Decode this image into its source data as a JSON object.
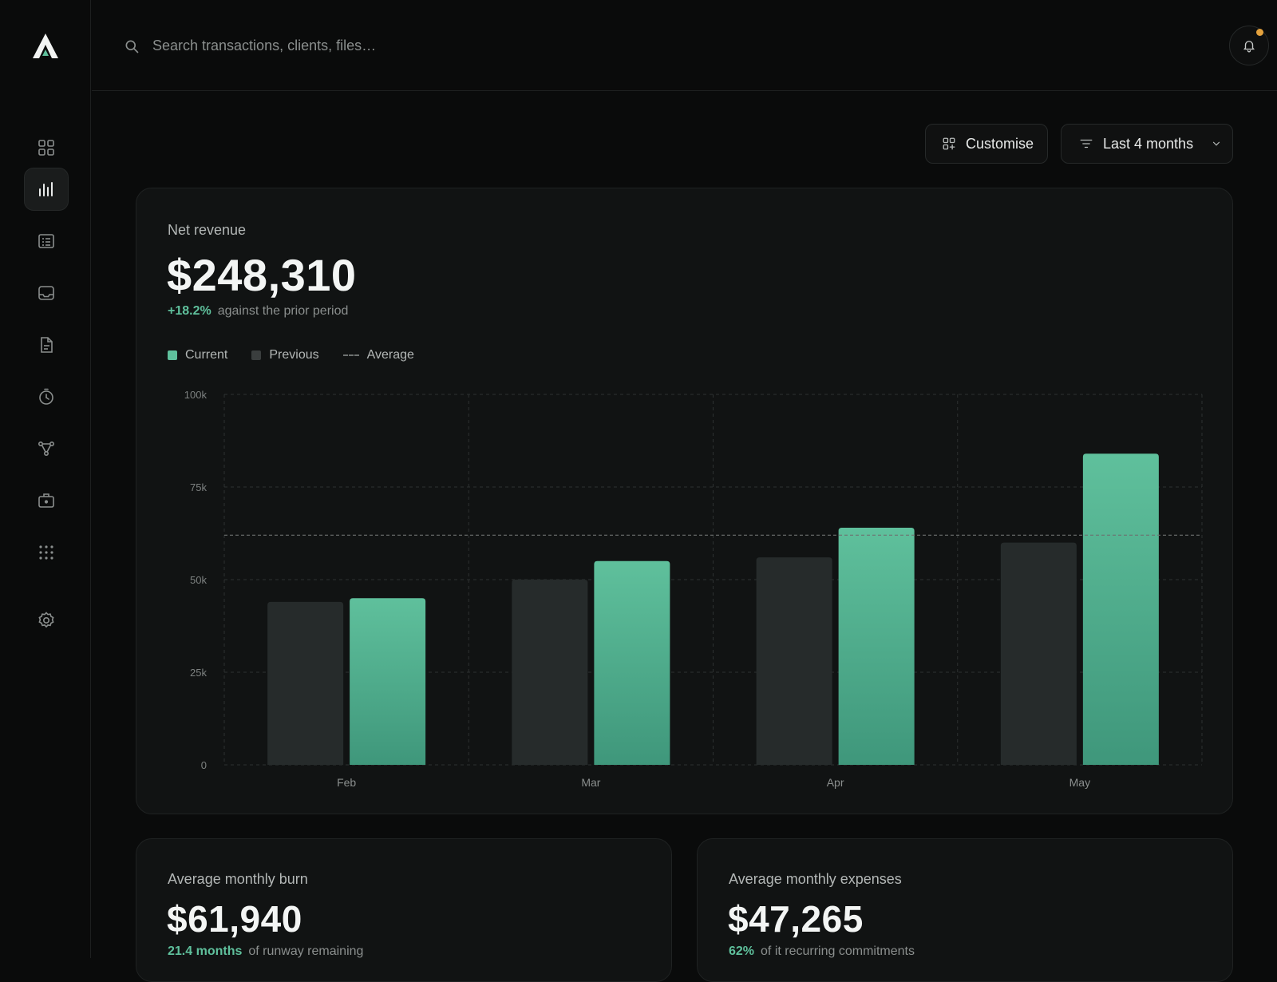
{
  "search": {
    "placeholder": "Search transactions, clients, files…"
  },
  "nav": {
    "items": [
      "grid-icon",
      "bar-chart-icon",
      "table-icon",
      "inbox-icon",
      "document-icon",
      "timer-icon",
      "branch-icon",
      "briefcase-icon",
      "apps-icon",
      "gear-icon"
    ],
    "active": "bar-chart-icon"
  },
  "toolbar": {
    "customise_label": "Customise",
    "period_label": "Last 4 months"
  },
  "colors": {
    "accent": "#5fc09c",
    "previous": "#262b2b",
    "notification": "#e3a13d"
  },
  "revenue": {
    "title": "Net revenue",
    "value": "$248,310",
    "change": "+18.2%",
    "change_text": "against the prior period",
    "legend": {
      "current": "Current",
      "previous": "Previous",
      "average": "Average"
    }
  },
  "chart_data": {
    "type": "bar",
    "categories": [
      "Feb",
      "Mar",
      "Apr",
      "May"
    ],
    "series": [
      {
        "name": "Previous",
        "values": [
          44000,
          50000,
          56000,
          60000
        ]
      },
      {
        "name": "Current",
        "values": [
          45000,
          55000,
          64000,
          84000
        ]
      }
    ],
    "average": 62000,
    "yticks": [
      0,
      25000,
      50000,
      75000,
      100000
    ],
    "ytick_labels": [
      "0",
      "25k",
      "50k",
      "75k",
      "100k"
    ],
    "ylim": [
      0,
      100000
    ],
    "grid": true,
    "legend": "top-left"
  },
  "burn": {
    "title": "Average monthly burn",
    "value": "$61,940",
    "highlight": "21.4 months",
    "text": "of runway remaining"
  },
  "expenses": {
    "title": "Average monthly expenses",
    "value": "$47,265",
    "highlight": "62%",
    "text": "of it recurring commitments"
  }
}
